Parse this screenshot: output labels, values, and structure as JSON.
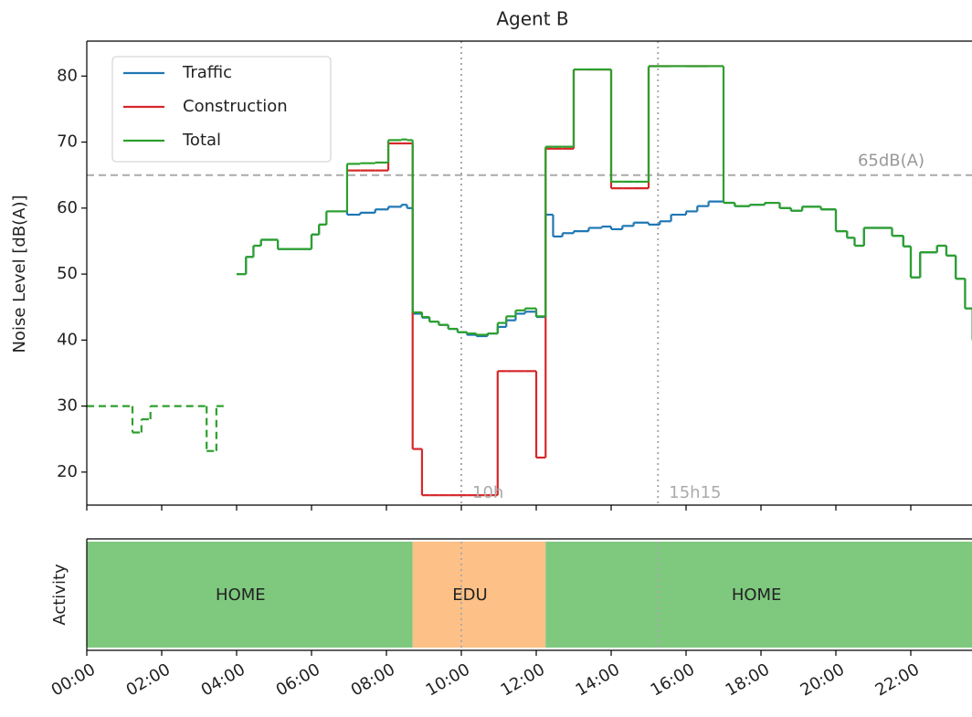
{
  "chart_data": [
    {
      "type": "step",
      "title": "Agent B",
      "ylabel": "Noise Level [dB(A)]",
      "xlim": [
        0,
        24
      ],
      "ylim": [
        15,
        85.3
      ],
      "xticks": [
        0,
        2,
        4,
        6,
        8,
        10,
        12,
        14,
        16,
        18,
        20,
        22
      ],
      "yticks": [
        20,
        30,
        40,
        50,
        60,
        70,
        80
      ],
      "x": [
        0,
        1.22,
        1.46,
        1.7,
        3.2,
        3.46,
        3.73,
        4.0,
        4.25,
        4.45,
        4.65,
        5.1,
        6.0,
        6.2,
        6.4,
        6.95,
        7.3,
        7.7,
        8.05,
        8.4,
        8.55,
        8.7,
        8.95,
        9.15,
        9.4,
        9.65,
        9.9,
        10.15,
        10.4,
        10.7,
        10.97,
        11.2,
        11.45,
        11.7,
        12.0,
        12.25,
        12.45,
        12.7,
        13.0,
        13.4,
        13.75,
        14.0,
        14.3,
        14.6,
        15.0,
        15.3,
        15.6,
        16.0,
        16.3,
        16.6,
        17.0,
        17.3,
        17.7,
        18.1,
        18.5,
        18.8,
        19.1,
        19.6,
        20.0,
        20.3,
        20.5,
        20.75,
        21.5,
        21.8,
        22.0,
        22.25,
        22.7,
        22.95,
        23.2,
        23.45,
        23.65
      ],
      "series": [
        {
          "name": "Traffic",
          "color": "#1f77b4",
          "values": [
            null,
            null,
            null,
            null,
            null,
            null,
            null,
            50,
            52.6,
            54.3,
            55.2,
            53.8,
            56,
            57.5,
            59.5,
            59,
            59.3,
            59.8,
            60.2,
            60.5,
            60,
            44,
            43.4,
            42.8,
            42.3,
            41.7,
            41.2,
            40.8,
            40.6,
            41,
            42,
            43,
            44,
            44.3,
            43.5,
            59,
            55.7,
            56.2,
            56.5,
            57,
            57.2,
            56.8,
            57.3,
            57.8,
            57.5,
            58,
            59,
            59.5,
            60.3,
            61,
            60.8,
            60.3,
            60.5,
            60.8,
            60,
            59.6,
            60.2,
            59.8,
            56.5,
            55.5,
            54.3,
            57,
            55.8,
            54.2,
            49.5,
            53.3,
            54.3,
            52.8,
            49.3,
            44.8,
            40
          ]
        },
        {
          "name": "Construction",
          "color": "#d62728",
          "values": [
            null,
            null,
            null,
            null,
            null,
            null,
            null,
            null,
            null,
            null,
            null,
            null,
            null,
            null,
            null,
            65.7,
            65.7,
            65.7,
            69.8,
            69.8,
            69.8,
            23.5,
            16.5,
            16.5,
            16.5,
            16.5,
            16.5,
            16.5,
            16.5,
            16.5,
            35.3,
            35.3,
            35.3,
            35.3,
            22.2,
            69,
            69,
            69,
            81,
            81,
            81,
            63,
            63,
            63,
            81.5,
            81.5,
            81.5,
            81.5,
            81.5,
            81.5,
            null,
            null,
            null,
            null,
            null,
            null,
            null,
            null,
            null,
            null,
            null,
            null,
            null,
            null,
            null,
            null,
            null,
            null,
            null,
            null,
            null
          ]
        },
        {
          "name": "Total",
          "color": "#2ca02c",
          "linestyle_pieces": [
            "dashed",
            "solid"
          ],
          "values": [
            30,
            26,
            28,
            30,
            23.2,
            30,
            null,
            50,
            52.6,
            54.3,
            55.2,
            53.8,
            56,
            57.5,
            59.5,
            66.7,
            66.8,
            66.9,
            70.3,
            70.4,
            70.3,
            44.2,
            43.5,
            42.8,
            42.3,
            41.7,
            41.2,
            41,
            40.8,
            41,
            42.6,
            43.6,
            44.5,
            44.8,
            43.6,
            69.3,
            69.3,
            69.3,
            81,
            81,
            81,
            64,
            64,
            64,
            81.5,
            81.5,
            81.5,
            81.5,
            81.5,
            81.5,
            60.8,
            60.3,
            60.5,
            60.8,
            60,
            59.6,
            60.2,
            59.8,
            56.5,
            55.5,
            54.3,
            57,
            55.8,
            54.2,
            49.5,
            53.3,
            54.3,
            52.8,
            49.3,
            44.8,
            40
          ]
        }
      ],
      "hlines": [
        {
          "value": 65,
          "label": "65dB(A)"
        }
      ],
      "vlines": [
        {
          "value": 10,
          "label": "10h"
        },
        {
          "value": 15.25,
          "label": "15h15"
        }
      ],
      "legend": "upper left"
    },
    {
      "type": "timeline",
      "ylabel": "Activity",
      "xlim": [
        0,
        24
      ],
      "xticks": [
        {
          "value": 0,
          "label": "00:00"
        },
        {
          "value": 2,
          "label": "02:00"
        },
        {
          "value": 4,
          "label": "04:00"
        },
        {
          "value": 6,
          "label": "06:00"
        },
        {
          "value": 8,
          "label": "08:00"
        },
        {
          "value": 10,
          "label": "10:00"
        },
        {
          "value": 12,
          "label": "12:00"
        },
        {
          "value": 14,
          "label": "14:00"
        },
        {
          "value": 16,
          "label": "16:00"
        },
        {
          "value": 18,
          "label": "18:00"
        },
        {
          "value": 20,
          "label": "20:00"
        },
        {
          "value": 22,
          "label": "22:00"
        }
      ],
      "segments": [
        {
          "label": "HOME",
          "start": 0,
          "end": 8.7,
          "color": "#7fc97f"
        },
        {
          "label": "EDU",
          "start": 8.7,
          "end": 12.25,
          "color": "#fdc086"
        },
        {
          "label": "HOME",
          "start": 12.25,
          "end": 24,
          "color": "#7fc97f"
        }
      ],
      "vlines": [
        10,
        15.25
      ]
    }
  ]
}
